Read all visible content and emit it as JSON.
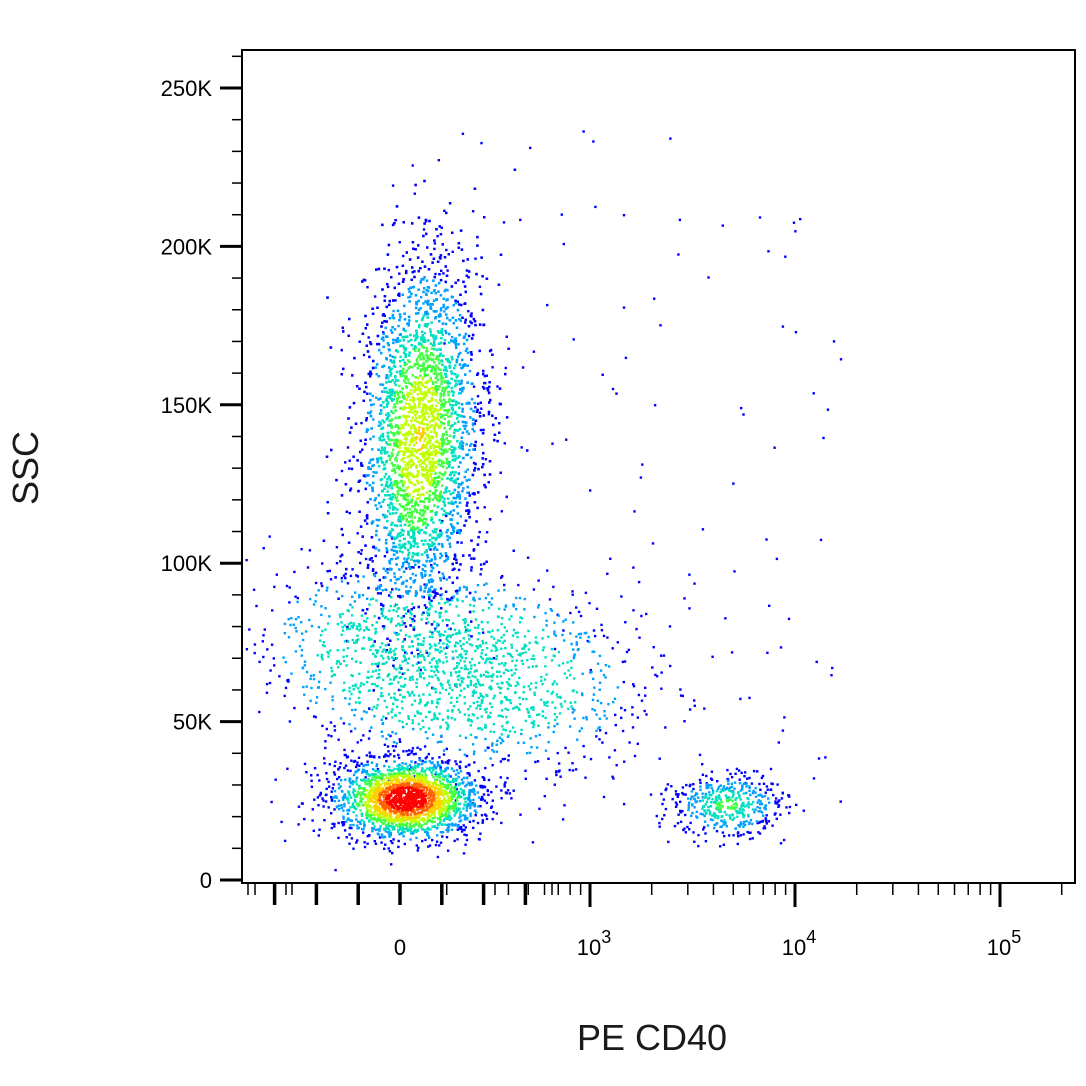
{
  "chart_data": {
    "type": "scatter",
    "subtype": "flow-cytometry-density-dot-plot",
    "title": "",
    "xlabel": "PE CD40",
    "ylabel": "SSC",
    "x_scale": "biexponential",
    "x_tick_labels": [
      {
        "label": "0",
        "value": 0
      },
      {
        "label": "10",
        "exp": "3",
        "value": 1000
      },
      {
        "label": "10",
        "exp": "4",
        "value": 10000
      },
      {
        "label": "10",
        "exp": "5",
        "value": 100000
      }
    ],
    "y_scale": "linear",
    "ylim": [
      0,
      262144
    ],
    "y_tick_labels": [
      {
        "label": "0",
        "value": 0
      },
      {
        "label": "50K",
        "value": 50000
      },
      {
        "label": "100K",
        "value": 100000
      },
      {
        "label": "150K",
        "value": 150000
      },
      {
        "label": "200K",
        "value": 200000
      },
      {
        "label": "250K",
        "value": 250000
      }
    ],
    "grid": false,
    "legend": "none",
    "density_colormap": [
      "#0000ff",
      "#00a0ff",
      "#00e0c0",
      "#40ff40",
      "#c0ff00",
      "#ffd000",
      "#ff6000",
      "#ff0000"
    ],
    "populations": [
      {
        "name": "",
        "x_center": 30,
        "y_center": 26000,
        "count": 2200
      },
      {
        "name": "",
        "x_center": 100,
        "y_center": 140000,
        "count": 4800
      },
      {
        "name": "",
        "x_center": 250,
        "y_center": 68000,
        "count": 1600
      },
      {
        "name": "",
        "x_center": 4600,
        "y_center": 24000,
        "count": 450
      }
    ]
  }
}
